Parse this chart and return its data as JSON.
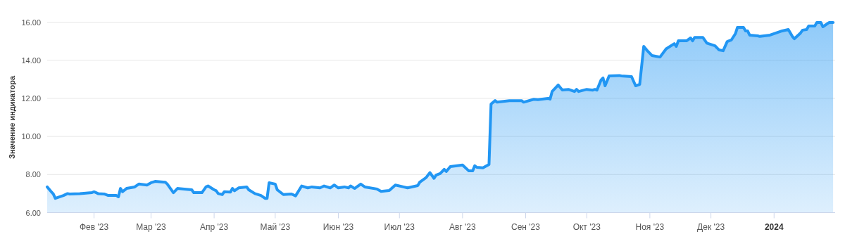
{
  "chart_data": {
    "type": "area",
    "ylabel": "Значение индикатора",
    "grid": "y",
    "xlim": [
      "2023-01-09",
      "2024-01-31"
    ],
    "ylim": [
      6,
      16
    ],
    "yticks": [
      {
        "value": 6,
        "label": "6.00"
      },
      {
        "value": 8,
        "label": "8.00"
      },
      {
        "value": 10,
        "label": "10.00"
      },
      {
        "value": 12,
        "label": "12.00"
      },
      {
        "value": 14,
        "label": "14.00"
      },
      {
        "value": 16,
        "label": "16.00"
      }
    ],
    "xticks": [
      {
        "value": "2023-02-01",
        "label": "Фев '23"
      },
      {
        "value": "2023-03-01",
        "label": "Мар '23"
      },
      {
        "value": "2023-04-01",
        "label": "Апр '23"
      },
      {
        "value": "2023-05-01",
        "label": "Май '23"
      },
      {
        "value": "2023-06-01",
        "label": "Июн '23"
      },
      {
        "value": "2023-07-01",
        "label": "Июл '23"
      },
      {
        "value": "2023-08-01",
        "label": "Авг '23"
      },
      {
        "value": "2023-09-01",
        "label": "Сен '23"
      },
      {
        "value": "2023-10-01",
        "label": "Окт '23"
      },
      {
        "value": "2023-11-01",
        "label": "Ноя '23"
      },
      {
        "value": "2023-12-01",
        "label": "Дек '23"
      },
      {
        "value": "2024-01-01",
        "label": "2024"
      }
    ],
    "x": [
      "2023-01-09",
      "2023-01-11",
      "2023-01-12",
      "2023-01-13",
      "2023-01-17",
      "2023-01-19",
      "2023-01-20",
      "2023-01-25",
      "2023-01-31",
      "2023-02-01",
      "2023-02-03",
      "2023-02-06",
      "2023-02-08",
      "2023-02-12",
      "2023-02-13",
      "2023-02-14",
      "2023-02-15",
      "2023-02-17",
      "2023-02-21",
      "2023-02-23",
      "2023-02-27",
      "2023-03-01",
      "2023-03-03",
      "2023-03-08",
      "2023-03-09",
      "2023-03-12",
      "2023-03-14",
      "2023-03-21",
      "2023-03-22",
      "2023-03-26",
      "2023-03-28",
      "2023-03-29",
      "2023-04-01",
      "2023-04-02",
      "2023-04-03",
      "2023-04-05",
      "2023-04-06",
      "2023-04-09",
      "2023-04-10",
      "2023-04-11",
      "2023-04-13",
      "2023-04-17",
      "2023-04-18",
      "2023-04-21",
      "2023-04-24",
      "2023-04-26",
      "2023-04-27",
      "2023-04-28",
      "2023-05-01",
      "2023-05-02",
      "2023-05-05",
      "2023-05-09",
      "2023-05-11",
      "2023-05-14",
      "2023-05-17",
      "2023-05-19",
      "2023-05-23",
      "2023-05-25",
      "2023-05-28",
      "2023-05-30",
      "2023-06-01",
      "2023-06-04",
      "2023-06-06",
      "2023-06-07",
      "2023-06-09",
      "2023-06-12",
      "2023-06-14",
      "2023-06-20",
      "2023-06-22",
      "2023-06-26",
      "2023-06-29",
      "2023-07-03",
      "2023-07-05",
      "2023-07-10",
      "2023-07-11",
      "2023-07-14",
      "2023-07-16",
      "2023-07-18",
      "2023-07-19",
      "2023-07-21",
      "2023-07-23",
      "2023-07-24",
      "2023-07-26",
      "2023-08-01",
      "2023-08-04",
      "2023-08-06",
      "2023-08-07",
      "2023-08-08",
      "2023-08-11",
      "2023-08-14",
      "2023-08-15",
      "2023-08-17",
      "2023-08-18",
      "2023-08-24",
      "2023-08-30",
      "2023-08-31",
      "2023-09-05",
      "2023-09-07",
      "2023-09-12",
      "2023-09-13",
      "2023-09-14",
      "2023-09-17",
      "2023-09-19",
      "2023-09-22",
      "2023-09-25",
      "2023-09-26",
      "2023-09-27",
      "2023-10-01",
      "2023-10-04",
      "2023-10-05",
      "2023-10-06",
      "2023-10-08",
      "2023-10-09",
      "2023-10-10",
      "2023-10-12",
      "2023-10-17",
      "2023-10-18",
      "2023-10-23",
      "2023-10-25",
      "2023-10-27",
      "2023-10-29",
      "2023-10-31",
      "2023-11-02",
      "2023-11-06",
      "2023-11-09",
      "2023-11-13",
      "2023-11-14",
      "2023-11-15",
      "2023-11-19",
      "2023-11-21",
      "2023-11-22",
      "2023-11-23",
      "2023-11-27",
      "2023-11-29",
      "2023-12-03",
      "2023-12-05",
      "2023-12-07",
      "2023-12-09",
      "2023-12-11",
      "2023-12-13",
      "2023-12-14",
      "2023-12-17",
      "2023-12-18",
      "2023-12-19",
      "2023-12-20",
      "2023-12-24",
      "2023-12-25",
      "2023-12-30",
      "2024-01-05",
      "2024-01-08",
      "2024-01-10",
      "2024-01-11",
      "2024-01-14",
      "2024-01-15",
      "2024-01-17",
      "2024-01-18",
      "2024-01-21",
      "2024-01-22",
      "2024-01-24",
      "2024-01-25",
      "2024-01-28",
      "2024-01-30"
    ],
    "series": [
      {
        "color": "#2196f3",
        "values": [
          7.35,
          7.1,
          6.98,
          6.75,
          6.9,
          7.0,
          6.98,
          7.0,
          7.05,
          7.1,
          7.0,
          6.98,
          6.9,
          6.9,
          6.83,
          7.27,
          7.1,
          7.27,
          7.35,
          7.5,
          7.45,
          7.57,
          7.64,
          7.6,
          7.5,
          7.05,
          7.27,
          7.2,
          7.05,
          7.05,
          7.35,
          7.4,
          7.2,
          7.15,
          7.0,
          6.95,
          7.1,
          7.08,
          7.27,
          7.15,
          7.3,
          7.35,
          7.2,
          7.0,
          6.9,
          6.75,
          6.75,
          7.57,
          7.5,
          7.2,
          6.95,
          6.98,
          6.88,
          7.4,
          7.3,
          7.35,
          7.3,
          7.4,
          7.3,
          7.45,
          7.3,
          7.35,
          7.3,
          7.4,
          7.27,
          7.5,
          7.35,
          7.24,
          7.12,
          7.16,
          7.45,
          7.35,
          7.3,
          7.42,
          7.6,
          7.83,
          8.1,
          7.8,
          7.97,
          8.05,
          8.27,
          8.16,
          8.42,
          8.5,
          8.2,
          8.2,
          8.46,
          8.38,
          8.35,
          8.53,
          11.7,
          11.88,
          11.8,
          11.88,
          11.88,
          11.8,
          11.95,
          11.93,
          12.0,
          11.96,
          12.36,
          12.7,
          12.44,
          12.47,
          12.36,
          12.47,
          12.36,
          12.47,
          12.43,
          12.47,
          12.43,
          12.96,
          13.07,
          12.66,
          13.18,
          13.2,
          13.18,
          13.14,
          12.66,
          12.73,
          14.73,
          14.47,
          14.25,
          14.17,
          14.6,
          14.87,
          14.73,
          15.02,
          15.02,
          15.17,
          15.02,
          15.2,
          15.2,
          14.9,
          14.76,
          14.54,
          14.5,
          14.98,
          15.06,
          15.39,
          15.72,
          15.72,
          15.54,
          15.54,
          15.32,
          15.28,
          15.25,
          15.32,
          15.54,
          15.61,
          15.25,
          15.13,
          15.43,
          15.58,
          15.61,
          15.8,
          15.8,
          15.98,
          15.98,
          15.76,
          15.98,
          15.98
        ]
      }
    ]
  }
}
